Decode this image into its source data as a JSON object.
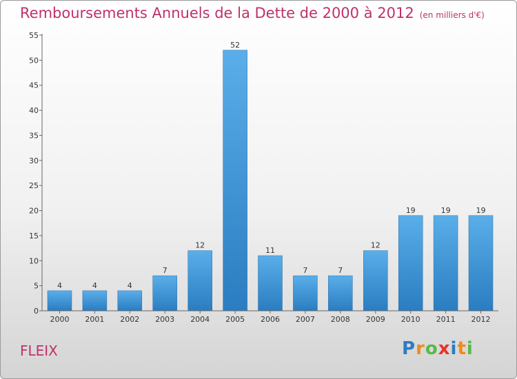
{
  "title": "Remboursements Annuels de la Dette de 2000 à 2012",
  "unit_note": "(en milliers d'€)",
  "commune": "FLEIX",
  "logo": {
    "text": "Proxiti",
    "letters": [
      {
        "ch": "P",
        "color": "#2e7bc4"
      },
      {
        "ch": "r",
        "color": "#f08a1c"
      },
      {
        "ch": "o",
        "color": "#58b947"
      },
      {
        "ch": "x",
        "color": "#e6332a"
      },
      {
        "ch": "i",
        "color": "#2e7bc4"
      },
      {
        "ch": "t",
        "color": "#f08a1c"
      },
      {
        "ch": "i",
        "color": "#58b947"
      }
    ]
  },
  "colors": {
    "title": "#c0306a",
    "bar_top": "#5aaee9",
    "bar_bottom": "#2a7dc0",
    "axis": "#666666"
  },
  "chart_data": {
    "type": "bar",
    "title": "Remboursements Annuels de la Dette de 2000 à 2012",
    "categories": [
      "2000",
      "2001",
      "2002",
      "2003",
      "2004",
      "2005",
      "2006",
      "2007",
      "2008",
      "2009",
      "2010",
      "2011",
      "2012"
    ],
    "values": [
      4,
      4,
      4,
      7,
      12,
      52,
      11,
      7,
      7,
      12,
      19,
      19,
      19
    ],
    "ylim": [
      0,
      55
    ],
    "yticks": [
      0,
      5,
      10,
      15,
      20,
      25,
      30,
      35,
      40,
      45,
      50,
      55
    ],
    "grid": false,
    "legend": "none"
  }
}
